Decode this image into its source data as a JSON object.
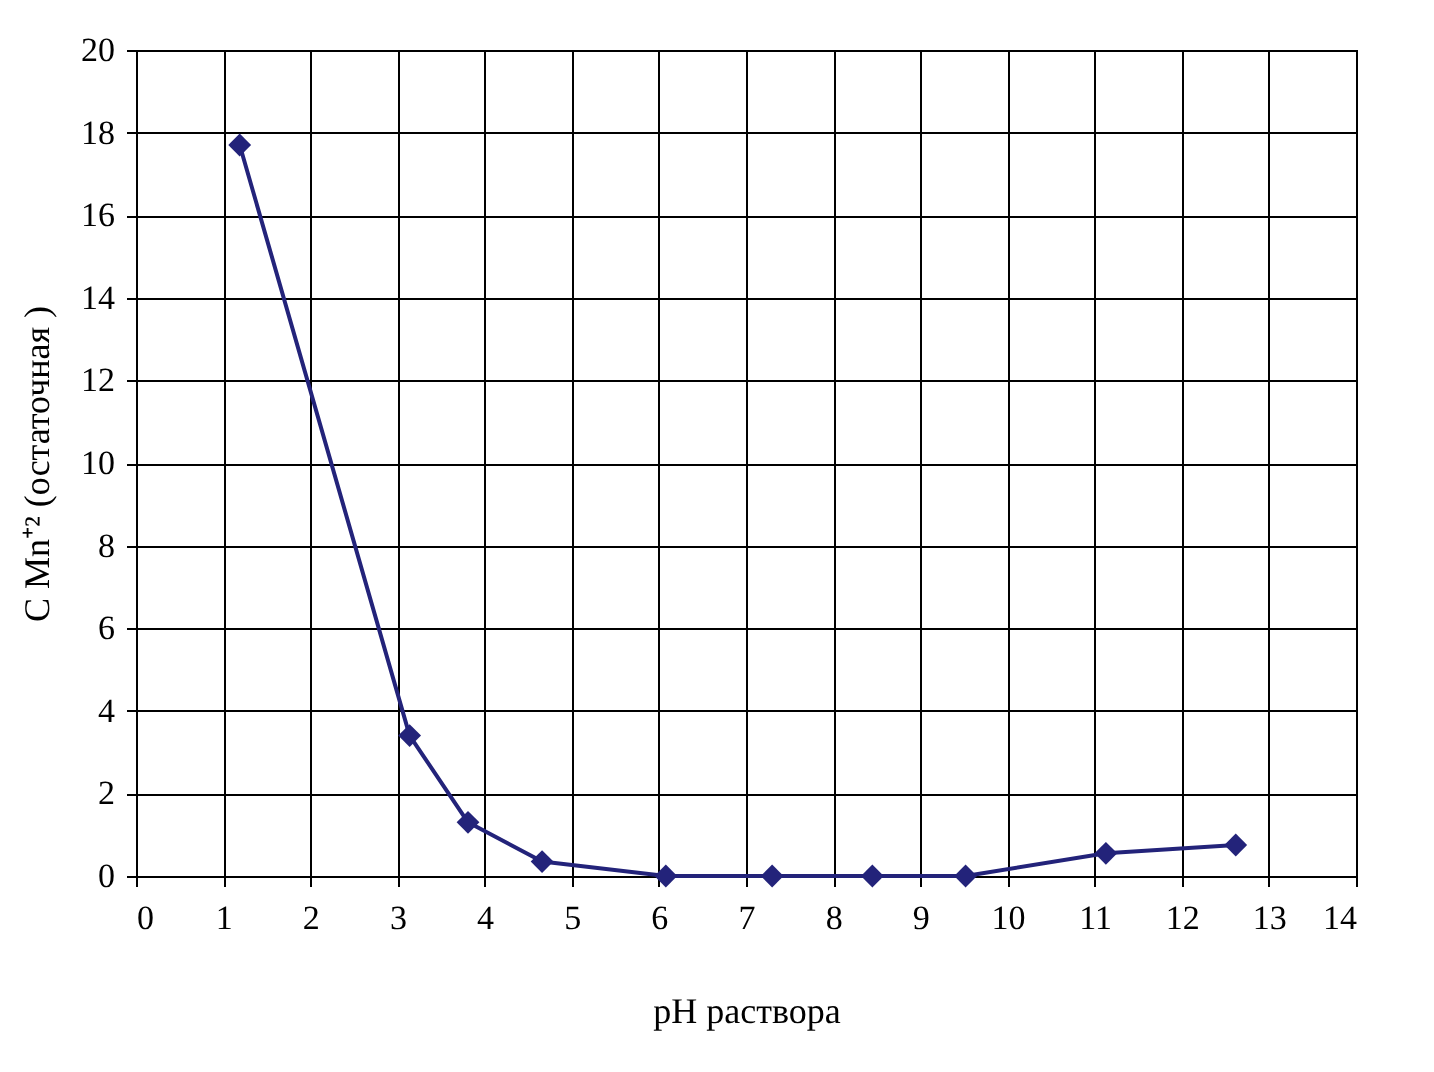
{
  "chart_data": {
    "type": "line",
    "xlabel": "pH раствора",
    "ylabel": "C Mn⁺² (остаточная )",
    "x": [
      1.19,
      3.14,
      3.81,
      4.66,
      6.08,
      7.3,
      8.45,
      9.52,
      11.13,
      12.62
    ],
    "series": [
      {
        "color": "#23237a",
        "values": [
          17.7,
          3.4,
          1.3,
          0.35,
          0,
          0,
          0,
          0,
          0.55,
          0.75
        ]
      }
    ],
    "xlim": [
      0,
      14
    ],
    "xticks": [
      0,
      1,
      2,
      3,
      4,
      5,
      6,
      7,
      8,
      9,
      10,
      11,
      12,
      13,
      14
    ],
    "ylim": [
      0,
      20
    ],
    "yticks": [
      0,
      2,
      4,
      6,
      8,
      10,
      12,
      14,
      16,
      18,
      20
    ],
    "grid": true,
    "marker": "diamond",
    "line_style": "solid"
  }
}
